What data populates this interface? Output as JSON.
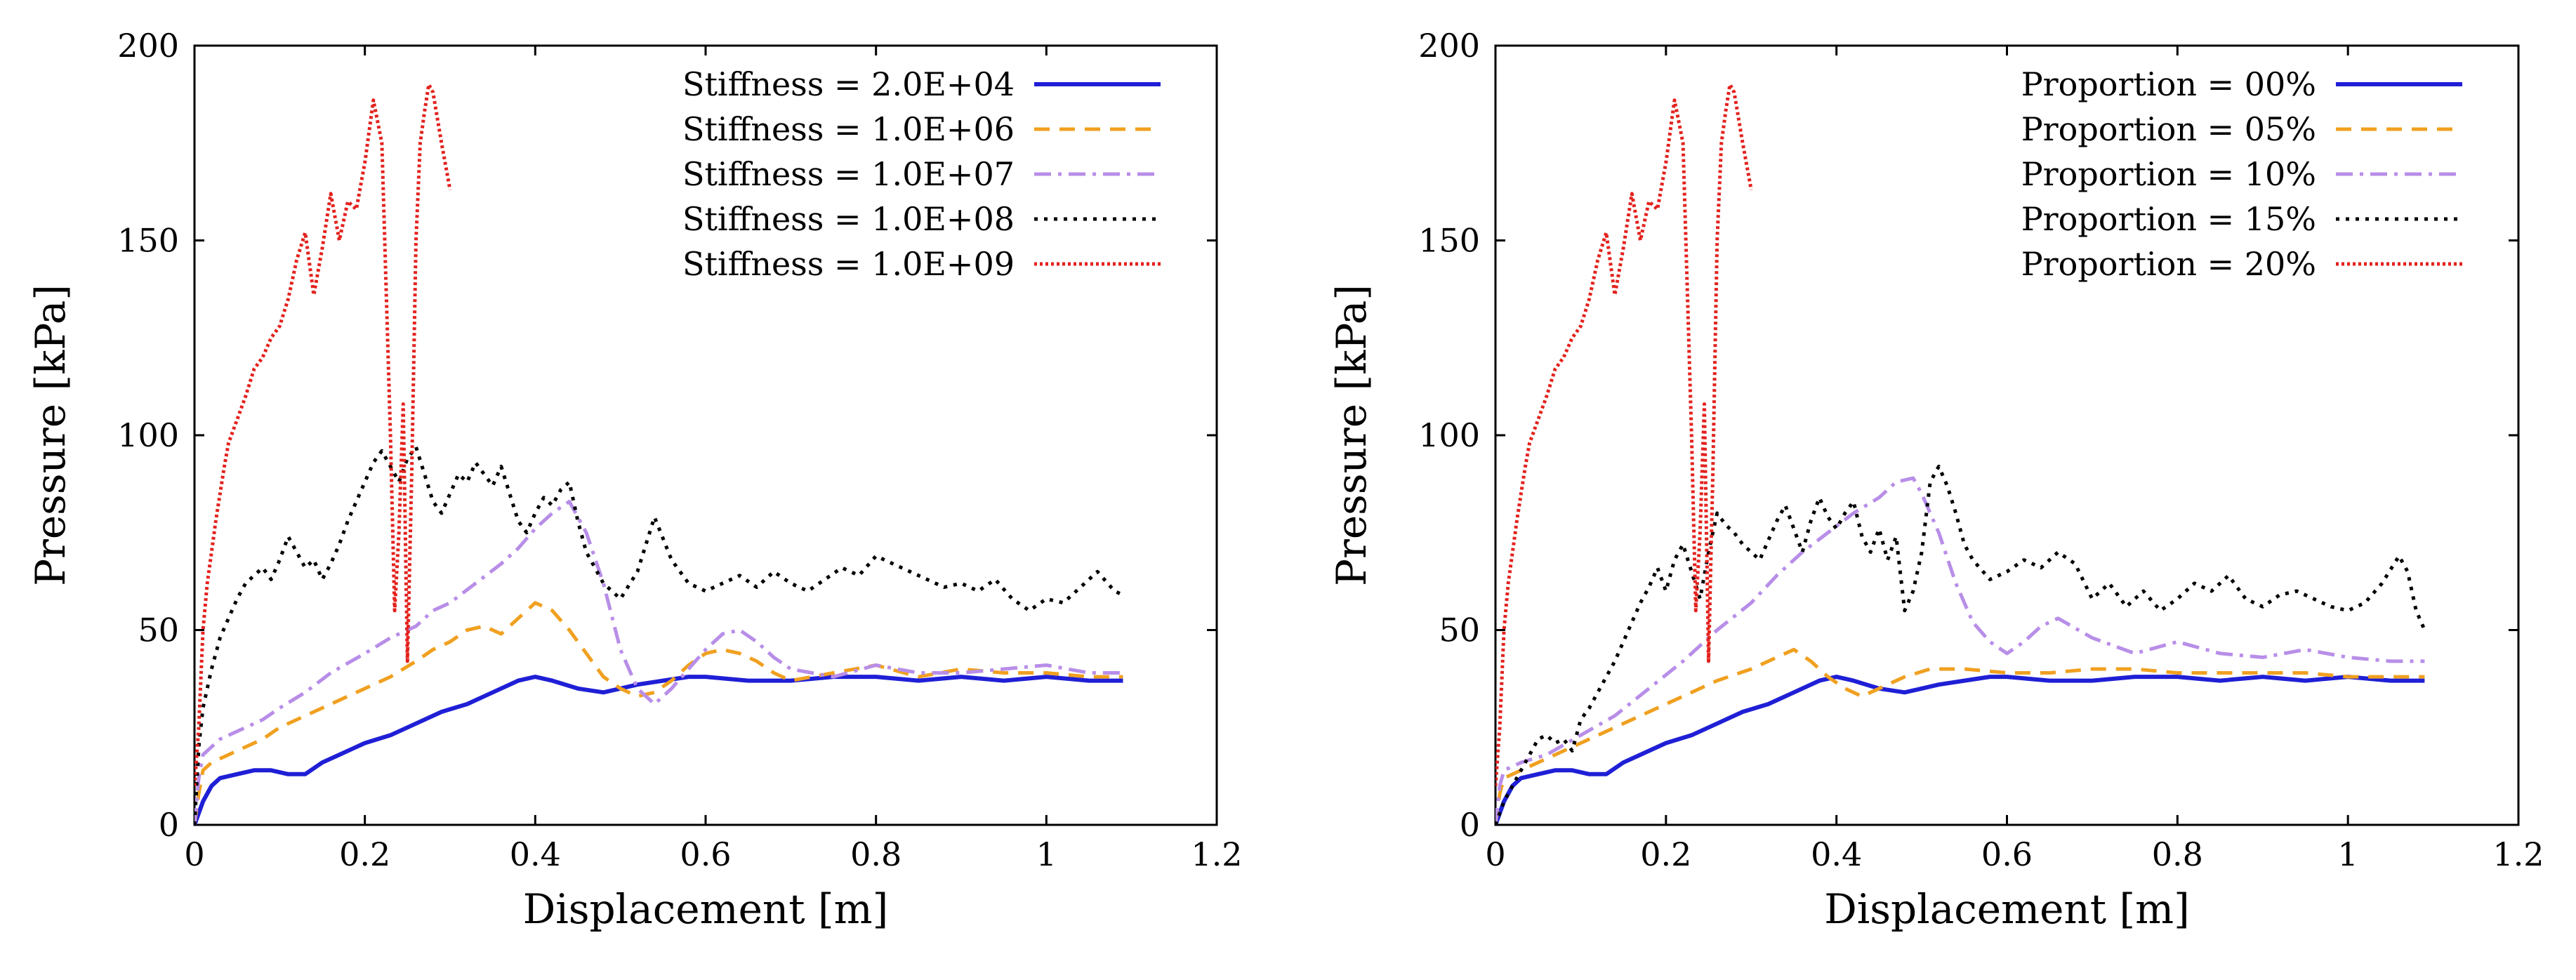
{
  "chart_data": [
    {
      "type": "line",
      "xlabel": "Displacement [m]",
      "ylabel": "Pressure [kPa]",
      "xlim": [
        0,
        1.2
      ],
      "ylim": [
        0,
        200
      ],
      "xticks": [
        "0",
        "0.2",
        "0.4",
        "0.6",
        "0.8",
        "1",
        "1.2"
      ],
      "yticks": [
        "0",
        "50",
        "100",
        "150",
        "200"
      ],
      "legend_position": "top-right",
      "series": [
        {
          "name": "Stiffness = 2.0E+04",
          "color": "#1f1fd6",
          "dash": "solid",
          "x": [
            0,
            0.005,
            0.01,
            0.02,
            0.03,
            0.05,
            0.07,
            0.09,
            0.11,
            0.13,
            0.15,
            0.17,
            0.2,
            0.23,
            0.26,
            0.29,
            0.32,
            0.35,
            0.38,
            0.4,
            0.42,
            0.45,
            0.48,
            0.5,
            0.52,
            0.55,
            0.58,
            0.6,
            0.65,
            0.7,
            0.75,
            0.8,
            0.85,
            0.9,
            0.95,
            1.0,
            1.05,
            1.09
          ],
          "y": [
            0,
            3,
            6,
            10,
            12,
            13,
            14,
            14,
            13,
            13,
            16,
            18,
            21,
            23,
            26,
            29,
            31,
            34,
            37,
            38,
            37,
            35,
            34,
            35,
            36,
            37,
            38,
            38,
            37,
            37,
            38,
            38,
            37,
            38,
            37,
            38,
            37,
            37
          ]
        },
        {
          "name": "Stiffness = 1.0E+06",
          "color": "#f0a020",
          "dash": "dashed",
          "x": [
            0,
            0.005,
            0.01,
            0.02,
            0.04,
            0.06,
            0.08,
            0.1,
            0.13,
            0.16,
            0.2,
            0.23,
            0.26,
            0.28,
            0.3,
            0.32,
            0.34,
            0.36,
            0.38,
            0.4,
            0.42,
            0.44,
            0.46,
            0.48,
            0.5,
            0.52,
            0.54,
            0.56,
            0.58,
            0.6,
            0.62,
            0.64,
            0.66,
            0.68,
            0.7,
            0.75,
            0.8,
            0.85,
            0.9,
            0.95,
            1.0,
            1.05,
            1.09
          ],
          "y": [
            0,
            8,
            14,
            16,
            18,
            20,
            22,
            25,
            28,
            31,
            35,
            38,
            42,
            45,
            47,
            50,
            51,
            49,
            53,
            57,
            55,
            50,
            44,
            38,
            35,
            33,
            34,
            37,
            41,
            44,
            45,
            44,
            42,
            39,
            37,
            39,
            41,
            38,
            40,
            39,
            39,
            38,
            38
          ]
        },
        {
          "name": "Stiffness = 1.0E+07",
          "color": "#b88ee8",
          "dash": "dashdot",
          "x": [
            0,
            0.005,
            0.01,
            0.03,
            0.05,
            0.08,
            0.1,
            0.13,
            0.16,
            0.2,
            0.23,
            0.26,
            0.28,
            0.3,
            0.33,
            0.36,
            0.38,
            0.4,
            0.42,
            0.44,
            0.46,
            0.48,
            0.5,
            0.52,
            0.54,
            0.56,
            0.58,
            0.6,
            0.62,
            0.64,
            0.66,
            0.68,
            0.7,
            0.75,
            0.8,
            0.85,
            0.9,
            0.95,
            1.0,
            1.05,
            1.09
          ],
          "y": [
            0,
            12,
            18,
            22,
            24,
            27,
            30,
            34,
            39,
            44,
            48,
            51,
            55,
            57,
            62,
            67,
            71,
            76,
            80,
            83,
            75,
            62,
            45,
            35,
            31,
            35,
            40,
            45,
            49,
            50,
            47,
            43,
            40,
            38,
            41,
            39,
            39,
            40,
            41,
            39,
            39
          ]
        },
        {
          "name": "Stiffness = 1.0E+08",
          "color": "#000000",
          "dash": "dotted",
          "x": [
            0,
            0.005,
            0.01,
            0.02,
            0.03,
            0.04,
            0.05,
            0.06,
            0.07,
            0.08,
            0.09,
            0.1,
            0.11,
            0.12,
            0.13,
            0.14,
            0.15,
            0.16,
            0.17,
            0.18,
            0.19,
            0.2,
            0.21,
            0.22,
            0.23,
            0.24,
            0.25,
            0.26,
            0.27,
            0.28,
            0.29,
            0.3,
            0.31,
            0.32,
            0.33,
            0.34,
            0.35,
            0.36,
            0.37,
            0.38,
            0.39,
            0.4,
            0.41,
            0.42,
            0.43,
            0.44,
            0.45,
            0.46,
            0.47,
            0.48,
            0.5,
            0.52,
            0.54,
            0.56,
            0.58,
            0.6,
            0.62,
            0.64,
            0.66,
            0.68,
            0.7,
            0.72,
            0.74,
            0.76,
            0.78,
            0.8,
            0.82,
            0.84,
            0.86,
            0.88,
            0.9,
            0.92,
            0.94,
            0.96,
            0.98,
            1.0,
            1.02,
            1.04,
            1.06,
            1.08,
            1.09
          ],
          "y": [
            0,
            20,
            30,
            40,
            48,
            53,
            58,
            62,
            64,
            66,
            63,
            68,
            74,
            70,
            66,
            68,
            63,
            67,
            72,
            78,
            83,
            88,
            93,
            96,
            92,
            88,
            94,
            97,
            90,
            83,
            80,
            85,
            90,
            88,
            93,
            90,
            87,
            92,
            85,
            78,
            75,
            80,
            84,
            82,
            86,
            88,
            78,
            70,
            66,
            62,
            58,
            65,
            79,
            68,
            62,
            60,
            62,
            64,
            61,
            65,
            62,
            60,
            63,
            66,
            64,
            69,
            67,
            65,
            63,
            61,
            62,
            60,
            63,
            58,
            55,
            58,
            57,
            61,
            65,
            60,
            59
          ]
        },
        {
          "name": "Stiffness = 1.0E+09",
          "color": "#e3211c",
          "dash": "dense-dotted",
          "x": [
            0,
            0.005,
            0.01,
            0.015,
            0.02,
            0.025,
            0.03,
            0.035,
            0.04,
            0.05,
            0.06,
            0.07,
            0.08,
            0.09,
            0.1,
            0.11,
            0.12,
            0.13,
            0.14,
            0.15,
            0.16,
            0.17,
            0.18,
            0.19,
            0.2,
            0.21,
            0.22,
            0.23,
            0.235,
            0.24,
            0.245,
            0.25,
            0.255,
            0.26,
            0.265,
            0.27,
            0.275,
            0.28,
            0.29,
            0.3
          ],
          "y": [
            10,
            25,
            50,
            62,
            70,
            78,
            85,
            92,
            98,
            104,
            110,
            117,
            120,
            125,
            128,
            135,
            145,
            152,
            136,
            148,
            162,
            150,
            160,
            158,
            170,
            186,
            175,
            100,
            55,
            75,
            108,
            42,
            90,
            150,
            175,
            183,
            190,
            188,
            175,
            163
          ]
        }
      ]
    },
    {
      "type": "line",
      "xlabel": "Displacement [m]",
      "ylabel": "Pressure [kPa]",
      "xlim": [
        0,
        1.2
      ],
      "ylim": [
        0,
        200
      ],
      "xticks": [
        "0",
        "0.2",
        "0.4",
        "0.6",
        "0.8",
        "1",
        "1.2"
      ],
      "yticks": [
        "0",
        "50",
        "100",
        "150",
        "200"
      ],
      "legend_position": "top-right",
      "series": [
        {
          "name": "Proportion = 00%",
          "color": "#1f1fd6",
          "dash": "solid",
          "x": [
            0,
            0.005,
            0.01,
            0.02,
            0.03,
            0.05,
            0.07,
            0.09,
            0.11,
            0.13,
            0.15,
            0.17,
            0.2,
            0.23,
            0.26,
            0.29,
            0.32,
            0.35,
            0.38,
            0.4,
            0.42,
            0.45,
            0.48,
            0.5,
            0.52,
            0.55,
            0.58,
            0.6,
            0.65,
            0.7,
            0.75,
            0.8,
            0.85,
            0.9,
            0.95,
            1.0,
            1.05,
            1.09
          ],
          "y": [
            0,
            3,
            6,
            10,
            12,
            13,
            14,
            14,
            13,
            13,
            16,
            18,
            21,
            23,
            26,
            29,
            31,
            34,
            37,
            38,
            37,
            35,
            34,
            35,
            36,
            37,
            38,
            38,
            37,
            37,
            38,
            38,
            37,
            38,
            37,
            38,
            37,
            37
          ]
        },
        {
          "name": "Proportion = 05%",
          "color": "#f0a020",
          "dash": "dashed",
          "x": [
            0,
            0.005,
            0.01,
            0.03,
            0.06,
            0.1,
            0.14,
            0.18,
            0.22,
            0.26,
            0.3,
            0.33,
            0.35,
            0.37,
            0.39,
            0.41,
            0.43,
            0.45,
            0.48,
            0.51,
            0.55,
            0.6,
            0.65,
            0.7,
            0.75,
            0.8,
            0.85,
            0.9,
            0.95,
            1.0,
            1.05,
            1.09
          ],
          "y": [
            0,
            8,
            12,
            14,
            17,
            21,
            25,
            29,
            33,
            37,
            40,
            43,
            45,
            42,
            38,
            35,
            33,
            35,
            38,
            40,
            40,
            39,
            39,
            40,
            40,
            39,
            39,
            39,
            39,
            38,
            38,
            38
          ]
        },
        {
          "name": "Proportion = 10%",
          "color": "#b88ee8",
          "dash": "dashdot",
          "x": [
            0,
            0.005,
            0.01,
            0.03,
            0.06,
            0.1,
            0.14,
            0.18,
            0.22,
            0.26,
            0.3,
            0.33,
            0.36,
            0.39,
            0.42,
            0.45,
            0.47,
            0.49,
            0.5,
            0.52,
            0.54,
            0.56,
            0.58,
            0.6,
            0.62,
            0.64,
            0.66,
            0.7,
            0.75,
            0.8,
            0.85,
            0.9,
            0.95,
            1.0,
            1.05,
            1.09
          ],
          "y": [
            0,
            10,
            14,
            16,
            18,
            23,
            28,
            35,
            42,
            50,
            57,
            64,
            70,
            75,
            80,
            84,
            88,
            89,
            85,
            75,
            62,
            52,
            47,
            44,
            47,
            51,
            53,
            48,
            44,
            47,
            44,
            43,
            45,
            43,
            42,
            42
          ]
        },
        {
          "name": "Proportion = 15%",
          "color": "#000000",
          "dash": "dotted",
          "x": [
            0,
            0.01,
            0.02,
            0.03,
            0.04,
            0.05,
            0.06,
            0.07,
            0.08,
            0.09,
            0.1,
            0.11,
            0.12,
            0.13,
            0.14,
            0.15,
            0.16,
            0.17,
            0.18,
            0.19,
            0.2,
            0.21,
            0.22,
            0.23,
            0.24,
            0.25,
            0.26,
            0.27,
            0.28,
            0.29,
            0.3,
            0.31,
            0.32,
            0.33,
            0.34,
            0.35,
            0.36,
            0.37,
            0.38,
            0.39,
            0.4,
            0.41,
            0.42,
            0.43,
            0.44,
            0.45,
            0.46,
            0.47,
            0.48,
            0.49,
            0.5,
            0.51,
            0.52,
            0.53,
            0.54,
            0.55,
            0.56,
            0.58,
            0.6,
            0.62,
            0.64,
            0.66,
            0.68,
            0.7,
            0.72,
            0.74,
            0.76,
            0.78,
            0.8,
            0.82,
            0.84,
            0.86,
            0.88,
            0.9,
            0.92,
            0.94,
            0.96,
            0.98,
            1.0,
            1.02,
            1.04,
            1.06,
            1.07,
            1.08,
            1.09
          ],
          "y": [
            0,
            6,
            10,
            14,
            18,
            22,
            23,
            21,
            22,
            19,
            27,
            30,
            34,
            38,
            42,
            47,
            52,
            57,
            61,
            66,
            60,
            68,
            72,
            65,
            58,
            70,
            80,
            77,
            75,
            72,
            70,
            68,
            73,
            78,
            82,
            76,
            70,
            78,
            84,
            79,
            76,
            80,
            83,
            74,
            70,
            76,
            68,
            74,
            55,
            60,
            70,
            88,
            92,
            87,
            80,
            72,
            68,
            63,
            65,
            68,
            66,
            70,
            67,
            58,
            62,
            56,
            60,
            55,
            58,
            62,
            60,
            64,
            58,
            56,
            59,
            60,
            58,
            56,
            55,
            57,
            62,
            69,
            65,
            55,
            50
          ]
        },
        {
          "name": "Proportion = 20%",
          "color": "#e3211c",
          "dash": "dense-dotted",
          "x": [
            0,
            0.005,
            0.01,
            0.015,
            0.02,
            0.025,
            0.03,
            0.035,
            0.04,
            0.05,
            0.06,
            0.07,
            0.08,
            0.09,
            0.1,
            0.11,
            0.12,
            0.13,
            0.14,
            0.15,
            0.16,
            0.17,
            0.18,
            0.19,
            0.2,
            0.21,
            0.22,
            0.23,
            0.235,
            0.24,
            0.245,
            0.25,
            0.255,
            0.26,
            0.265,
            0.27,
            0.275,
            0.28,
            0.29,
            0.3
          ],
          "y": [
            10,
            25,
            50,
            62,
            70,
            78,
            85,
            92,
            98,
            104,
            110,
            117,
            120,
            125,
            128,
            135,
            145,
            152,
            136,
            148,
            162,
            150,
            160,
            158,
            170,
            186,
            175,
            100,
            55,
            75,
            108,
            42,
            90,
            150,
            175,
            183,
            190,
            188,
            175,
            163
          ]
        }
      ]
    }
  ]
}
